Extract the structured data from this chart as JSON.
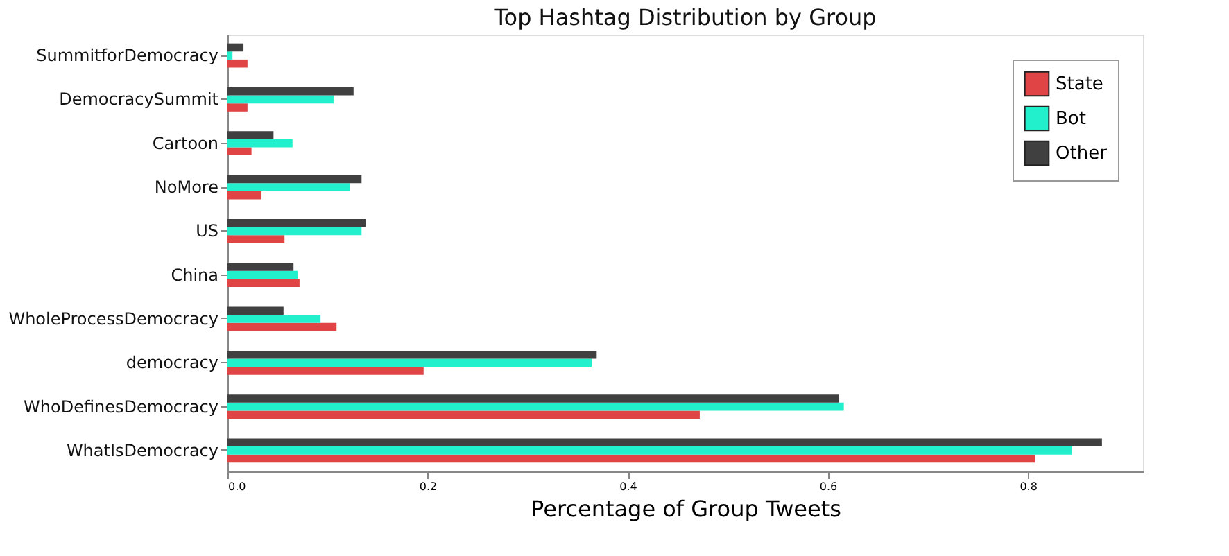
{
  "chart_data": {
    "type": "bar",
    "orientation": "horizontal",
    "title": "Top Hashtag Distribution by Group",
    "xlabel": "Percentage of Group Tweets",
    "categories": [
      "SummitforDemocracy",
      "DemocracySummit",
      "Cartoon",
      "NoMore",
      "US",
      "China",
      "WholeProcessDemocracy",
      "democracy",
      "WhoDefinesDemocracy",
      "WhatIsDemocracy"
    ],
    "series": [
      {
        "name": "State",
        "color": "#e04444",
        "values": [
          0.02,
          0.02,
          0.024,
          0.034,
          0.057,
          0.072,
          0.109,
          0.196,
          0.472,
          0.807
        ]
      },
      {
        "name": "Bot",
        "color": "#22f0cc",
        "values": [
          0.005,
          0.106,
          0.065,
          0.122,
          0.134,
          0.07,
          0.093,
          0.364,
          0.616,
          0.844
        ]
      },
      {
        "name": "Other",
        "color": "#404040",
        "values": [
          0.016,
          0.126,
          0.046,
          0.134,
          0.138,
          0.066,
          0.056,
          0.369,
          0.611,
          0.874
        ]
      }
    ],
    "xlim": [
      0,
      0.915
    ],
    "xticks": [
      {
        "value": 0,
        "label": "0.0"
      },
      0.2,
      0.4,
      0.6,
      0.8
    ],
    "grid": false,
    "legend": "top right"
  }
}
